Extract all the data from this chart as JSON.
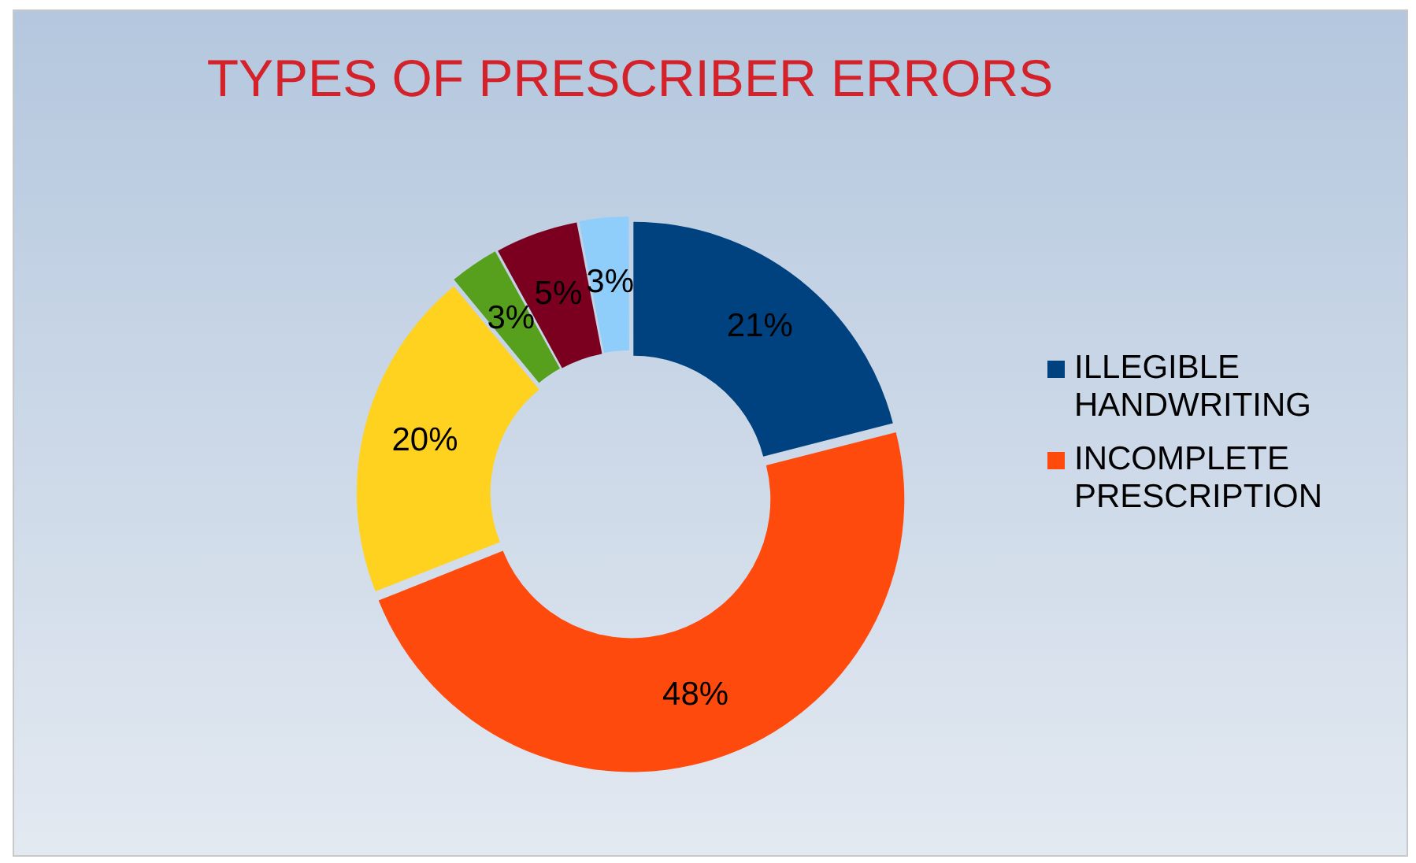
{
  "chart_data": {
    "type": "donut",
    "title": "TYPES OF PRESCRIBER ERRORS",
    "categories": [
      "ILLEGIBLE HANDWRITING",
      "INCOMPLETE PRESCRIPTION",
      null,
      null,
      null,
      null
    ],
    "values": [
      21,
      48,
      20,
      3,
      5,
      3
    ],
    "value_labels": [
      "21%",
      "48%",
      "20%",
      "3%",
      "5%",
      "3%"
    ],
    "colors": [
      "#00427f",
      "#ff4a0d",
      "#ffd21f",
      "#56a01e",
      "#7b0020",
      "#8fcdfb"
    ],
    "legend": "right"
  }
}
